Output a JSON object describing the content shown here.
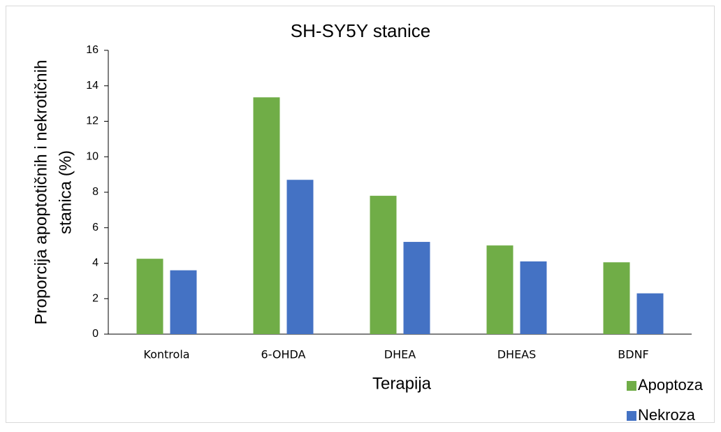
{
  "chart_data": {
    "type": "bar",
    "title": "SH-SY5Y stanice",
    "x_label": "Terapija",
    "y_label": [
      "Proporcija apoptotičnih i nekrotičnih",
      "stanica (%)"
    ],
    "categories": [
      "Kontrola",
      "6-OHDA",
      "DHEA",
      "DHEAS",
      "BDNF"
    ],
    "series": [
      {
        "name": "Apoptoza",
        "color": "#70ad47",
        "values": [
          4.25,
          13.35,
          7.8,
          5.0,
          4.05
        ]
      },
      {
        "name": "Nekroza",
        "color": "#4472c4",
        "values": [
          3.6,
          8.7,
          5.2,
          4.1,
          2.3
        ]
      }
    ],
    "ylim": [
      0,
      16
    ],
    "yticks": [
      0,
      2,
      4,
      6,
      8,
      10,
      12,
      14,
      16
    ],
    "grid": false,
    "legend": "bottom-right"
  }
}
